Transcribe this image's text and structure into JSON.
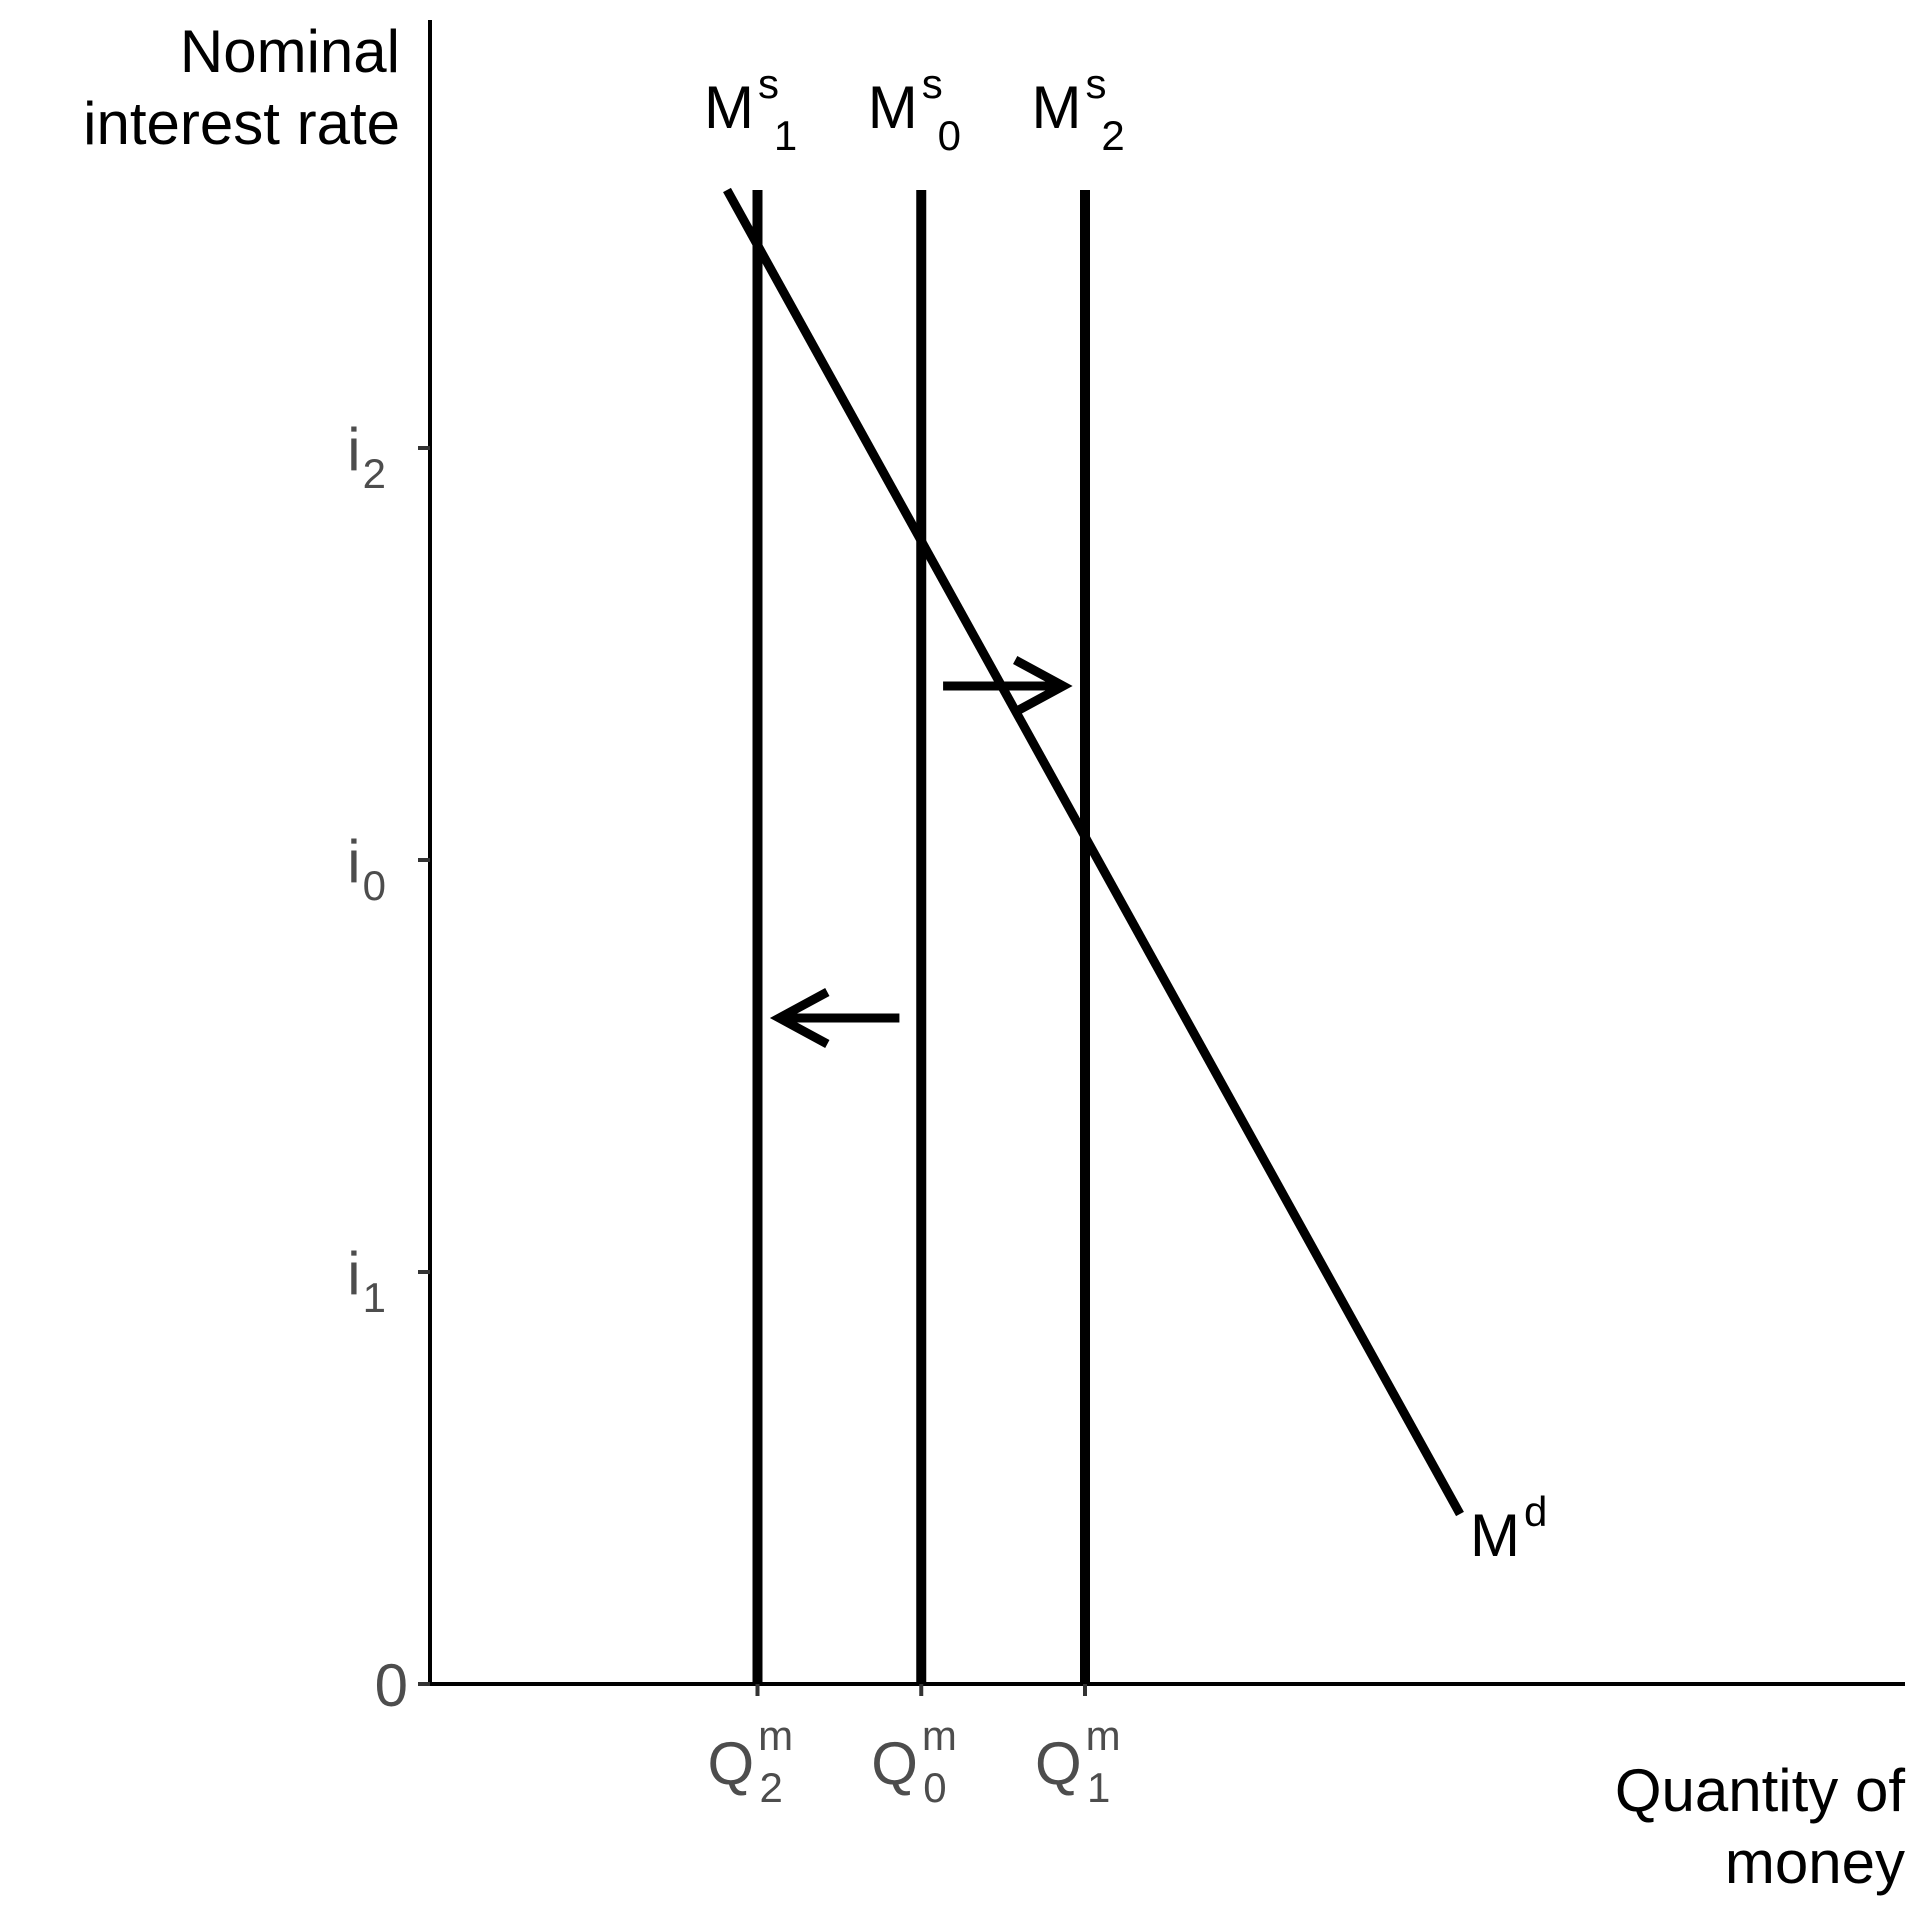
{
  "chart_data": {
    "type": "line",
    "title": "",
    "xlabel": [
      "Quantity of",
      "money"
    ],
    "ylabel": [
      "Nominal",
      "interest rate"
    ],
    "xlim": [
      0,
      10
    ],
    "ylim": [
      0,
      10
    ],
    "x_ticks": [
      {
        "value": 3,
        "base": "Q",
        "sup": "m",
        "sub": "2"
      },
      {
        "value": 4.5,
        "base": "Q",
        "sup": "m",
        "sub": "0"
      },
      {
        "value": 6,
        "base": "Q",
        "sup": "m",
        "sub": "1"
      }
    ],
    "y_ticks": [
      {
        "value": 0,
        "base": "0",
        "sub": ""
      },
      {
        "value": 2.5,
        "base": "i",
        "sub": "1"
      },
      {
        "value": 5,
        "base": "i",
        "sub": "0"
      },
      {
        "value": 7.5,
        "base": "i",
        "sub": "2"
      }
    ],
    "series": [
      {
        "label": {
          "base": "M",
          "sup": "d",
          "sub": ""
        },
        "kind": "demand",
        "x": [
          2,
          7
        ],
        "y": [
          9,
          1
        ]
      },
      {
        "label": {
          "base": "M",
          "sup": "s",
          "sub": "1"
        },
        "kind": "supply",
        "x": [
          3,
          3
        ],
        "y": [
          0,
          9
        ]
      },
      {
        "label": {
          "base": "M",
          "sup": "s",
          "sub": "0"
        },
        "kind": "supply",
        "x": [
          4.5,
          4.5
        ],
        "y": [
          0,
          9
        ]
      },
      {
        "label": {
          "base": "M",
          "sup": "s",
          "sub": "2"
        },
        "kind": "supply",
        "x": [
          6,
          6
        ],
        "y": [
          0,
          9
        ]
      }
    ],
    "annotations": [
      {
        "type": "arrow",
        "direction": "right",
        "x_from": 4.7,
        "x_to": 5.8,
        "y": 6
      },
      {
        "type": "arrow",
        "direction": "left",
        "x_from": 4.3,
        "x_to": 3.2,
        "y": 4
      }
    ],
    "grid": false,
    "legend": "none",
    "colors": {
      "line": "#000000",
      "tick_text": "#4d4d4d",
      "axis_text": "#000000"
    }
  }
}
